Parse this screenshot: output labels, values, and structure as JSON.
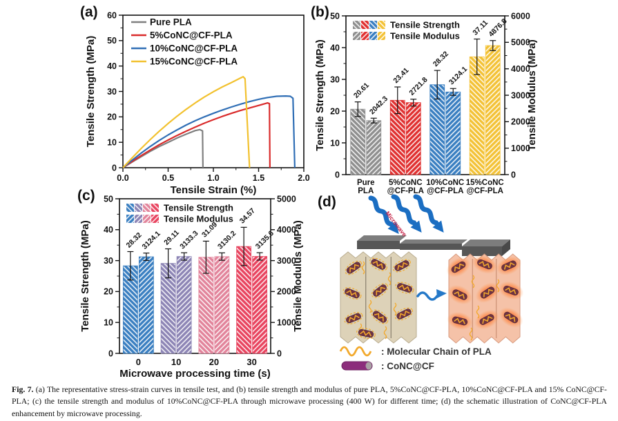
{
  "panels": {
    "a": {
      "label": "(a)"
    },
    "b": {
      "label": "(b)"
    },
    "c": {
      "label": "(c)"
    },
    "d": {
      "label": "(d)",
      "microwave_label": "Microwave",
      "legend": [
        {
          "symbol": "pla-chain-wave",
          "text": ": Molecular Chain of PLA"
        },
        {
          "symbol": "conc-cf-rod",
          "text": ": CoNC@CF"
        }
      ],
      "colors": {
        "arrow_blue": "#1b6ec2",
        "chain_yellow": "#f2a92c",
        "rod_purple": "#8c2d7c"
      }
    }
  },
  "chart_data": [
    {
      "id": "a",
      "type": "line",
      "xlabel": "Tensile Strain (%)",
      "ylabel": "Tensile Strength (MPa)",
      "xlim": [
        0,
        2
      ],
      "ylim": [
        0,
        60
      ],
      "xticks": [
        0,
        0.5,
        1,
        1.5,
        2
      ],
      "xtick_labels": [
        "0.0",
        "0.5",
        "1.0",
        "1.5",
        "2.0"
      ],
      "yticks": [
        0,
        10,
        20,
        30,
        40,
        50,
        60
      ],
      "legend_position": "top-left",
      "series": [
        {
          "name": "Pure PLA",
          "color": "#7f7f7f",
          "points": [
            [
              0,
              0
            ],
            [
              0.1,
              2.2
            ],
            [
              0.2,
              4.3
            ],
            [
              0.3,
              6.4
            ],
            [
              0.4,
              8.3
            ],
            [
              0.5,
              10.0
            ],
            [
              0.6,
              11.7
            ],
            [
              0.7,
              13.2
            ],
            [
              0.8,
              14.6
            ],
            [
              0.85,
              15.0
            ],
            [
              0.88,
              14.5
            ],
            [
              0.885,
              0
            ]
          ]
        },
        {
          "name": "5%CoNC@CF-PLA",
          "color": "#d92b2b",
          "points": [
            [
              0,
              0
            ],
            [
              0.1,
              2.4
            ],
            [
              0.2,
              4.7
            ],
            [
              0.3,
              6.9
            ],
            [
              0.4,
              9.0
            ],
            [
              0.5,
              10.9
            ],
            [
              0.6,
              12.7
            ],
            [
              0.7,
              14.4
            ],
            [
              0.8,
              16.0
            ],
            [
              0.9,
              17.5
            ],
            [
              1.0,
              18.9
            ],
            [
              1.1,
              20.2
            ],
            [
              1.2,
              21.4
            ],
            [
              1.3,
              22.5
            ],
            [
              1.4,
              23.5
            ],
            [
              1.5,
              24.5
            ],
            [
              1.6,
              25.5
            ],
            [
              1.62,
              25.2
            ],
            [
              1.625,
              0
            ]
          ]
        },
        {
          "name": "10%CoNC@CF-PLA",
          "color": "#2f6eb5",
          "points": [
            [
              0,
              0
            ],
            [
              0.1,
              2.9
            ],
            [
              0.2,
              5.7
            ],
            [
              0.3,
              8.3
            ],
            [
              0.4,
              10.7
            ],
            [
              0.5,
              12.9
            ],
            [
              0.6,
              14.9
            ],
            [
              0.7,
              16.8
            ],
            [
              0.8,
              18.5
            ],
            [
              0.9,
              20.0
            ],
            [
              1.0,
              21.4
            ],
            [
              1.1,
              22.7
            ],
            [
              1.2,
              23.9
            ],
            [
              1.3,
              25.0
            ],
            [
              1.4,
              26.0
            ],
            [
              1.5,
              26.9
            ],
            [
              1.6,
              27.6
            ],
            [
              1.7,
              28.1
            ],
            [
              1.8,
              28.2
            ],
            [
              1.85,
              28.1
            ],
            [
              1.88,
              27.3
            ],
            [
              1.9,
              0
            ]
          ]
        },
        {
          "name": "15%CoNC@CF-PLA",
          "color": "#f2c12e",
          "points": [
            [
              0,
              0
            ],
            [
              0.1,
              3.8
            ],
            [
              0.2,
              7.5
            ],
            [
              0.3,
              11.0
            ],
            [
              0.4,
              14.3
            ],
            [
              0.5,
              17.4
            ],
            [
              0.6,
              20.3
            ],
            [
              0.7,
              23.0
            ],
            [
              0.8,
              25.5
            ],
            [
              0.9,
              27.8
            ],
            [
              1.0,
              29.9
            ],
            [
              1.1,
              31.8
            ],
            [
              1.2,
              33.5
            ],
            [
              1.3,
              35.3
            ],
            [
              1.33,
              35.8
            ],
            [
              1.35,
              35.0
            ],
            [
              1.4,
              0
            ]
          ]
        }
      ]
    },
    {
      "id": "b",
      "type": "bar",
      "categories": [
        [
          "Pure",
          "PLA"
        ],
        [
          "5%CoNC",
          "@CF-PLA"
        ],
        [
          "10%CoNC",
          "@CF-PLA"
        ],
        [
          "15%CoNC",
          "@CF-PLA"
        ]
      ],
      "bar_colors": [
        "#8f8f8f",
        "#e03131",
        "#3a7fc1",
        "#f3c237"
      ],
      "left_axis": {
        "label": "Tensile Strength (MPa)",
        "lim": [
          0,
          50
        ],
        "ticks": [
          0,
          10,
          20,
          30,
          40,
          50
        ]
      },
      "right_axis": {
        "label": "Tensile Modulus (MPa)",
        "lim": [
          0,
          6000
        ],
        "ticks": [
          0,
          1000,
          2000,
          3000,
          4000,
          5000,
          6000
        ]
      },
      "series": [
        {
          "name": "Tensile Strength",
          "axis": "left",
          "hatch": "/",
          "values": [
            20.61,
            23.41,
            28.32,
            37.11
          ],
          "errors": [
            2.3,
            4.2,
            4.5,
            5.6
          ]
        },
        {
          "name": "Tensile Modulus",
          "axis": "right",
          "hatch": "\\",
          "values": [
            2042.3,
            2721.8,
            3124.1,
            4876.8
          ],
          "errors": [
            90,
            130,
            130,
            190
          ]
        }
      ]
    },
    {
      "id": "c",
      "type": "bar",
      "categories": [
        [
          "0"
        ],
        [
          "10"
        ],
        [
          "20"
        ],
        [
          "30"
        ]
      ],
      "xlabel": "Microwave processing time (s)",
      "bar_colors": [
        "#3a7fc1",
        "#8d85b5",
        "#e2849b",
        "#e8445f"
      ],
      "left_axis": {
        "label": "Tensile Strength (MPa)",
        "lim": [
          0,
          50
        ],
        "ticks": [
          0,
          10,
          20,
          30,
          40,
          50
        ]
      },
      "right_axis": {
        "label": "Tensile Modulus (MPa)",
        "lim": [
          0,
          5000
        ],
        "ticks": [
          0,
          1000,
          2000,
          3000,
          4000,
          5000
        ]
      },
      "series": [
        {
          "name": "Tensile Strength",
          "axis": "left",
          "hatch": "/",
          "values": [
            28.32,
            29.11,
            31.09,
            34.57
          ],
          "errors": [
            4.6,
            4.7,
            5.2,
            6.2
          ]
        },
        {
          "name": "Tensile Modulus",
          "axis": "right",
          "hatch": "\\",
          "values": [
            3124.1,
            3133.3,
            3130.2,
            3135.6
          ],
          "errors": [
            120,
            120,
            120,
            120
          ]
        }
      ]
    }
  ],
  "caption": {
    "label": "Fig. 7.",
    "text": " (a) The representative stress-strain curves in tensile test, and (b) tensile strength and modulus of pure PLA, 5%CoNC@CF-PLA, 10%CoNC@CF-PLA and 15% CoNC@CF-PLA; (c) the tensile strength and modulus of 10%CoNC@CF-PLA through microwave processing (400 W) for different time; (d) the schematic illustration of CoNC@CF-PLA enhancement by microwave processing."
  }
}
